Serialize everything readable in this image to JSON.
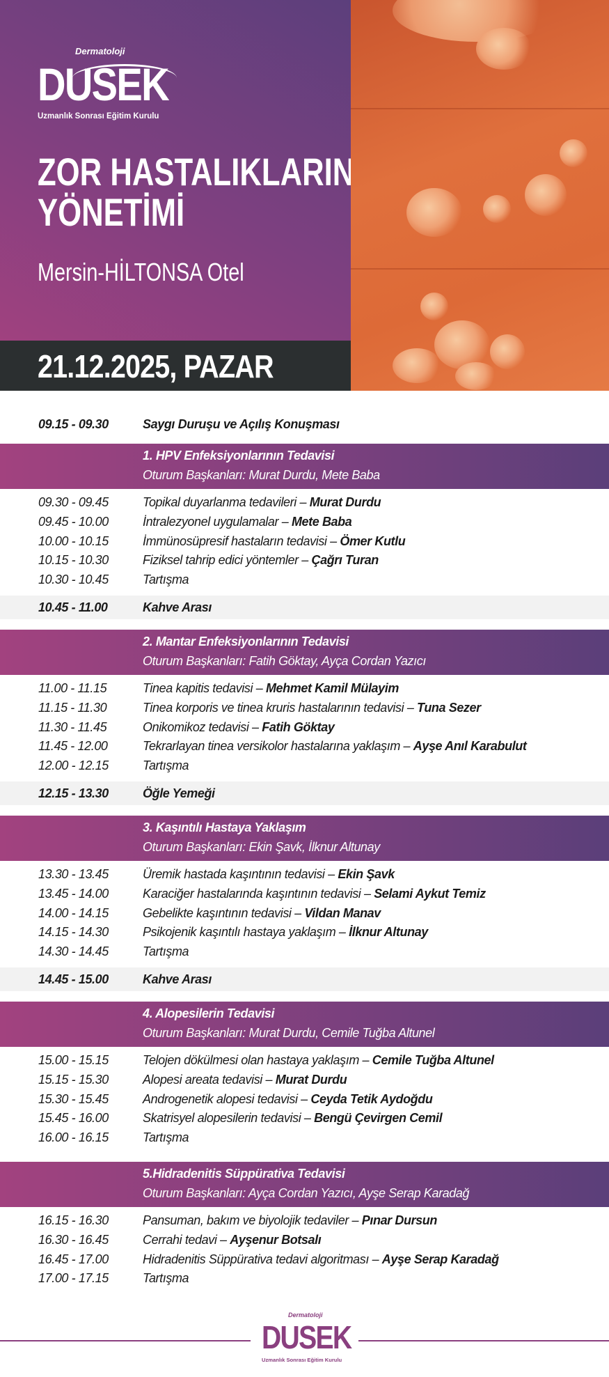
{
  "logo": {
    "top_text": "Dermatoloji",
    "main_text": "DUSEK",
    "sub_text": "Uzmanlık Sonrası Eğitim Kurulu"
  },
  "event": {
    "title_line1": "ZOR HASTALIKLARIN",
    "title_line2": "YÖNETİMİ",
    "venue": "Mersin-HİLTONSA Otel",
    "date": "21.12.2025, PAZAR"
  },
  "colors": {
    "purple_start": "#a2427f",
    "purple_end": "#5b3f7a",
    "date_bar": "#2b2f30",
    "break_band": "#f2f2f2",
    "photo_orange": "#dd6a37"
  },
  "schedule": [
    {
      "type": "plain",
      "time": "09.15 - 09.30",
      "title": "Saygı Duruşu ve Açılış Konuşması"
    },
    {
      "type": "session",
      "title": "1. HPV Enfeksiyonlarının Tedavisi",
      "chairs": "Oturum Başkanları: Murat Durdu, Mete Baba",
      "talks": [
        {
          "time": "09.30 - 09.45",
          "topic": "Topikal duyarlanma tedavileri – ",
          "speaker": "Murat Durdu"
        },
        {
          "time": "09.45 - 10.00",
          "topic": "İntralezyonel uygulamalar – ",
          "speaker": "Mete Baba"
        },
        {
          "time": "10.00 - 10.15",
          "topic": "İmmünosüpresif hastaların tedavisi – ",
          "speaker": "Ömer Kutlu"
        },
        {
          "time": "10.15 - 10.30",
          "topic": "Fiziksel tahrip edici yöntemler – ",
          "speaker": "Çağrı Turan"
        },
        {
          "time": "10.30 - 10.45",
          "topic": "Tartışma",
          "speaker": ""
        }
      ]
    },
    {
      "type": "break",
      "time": "10.45 - 11.00",
      "title": "Kahve Arası"
    },
    {
      "type": "session",
      "title": "2. Mantar Enfeksiyonlarının Tedavisi",
      "chairs": "Oturum Başkanları: Fatih Göktay, Ayça Cordan Yazıcı",
      "talks": [
        {
          "time": "11.00 - 11.15",
          "topic": "Tinea kapitis tedavisi – ",
          "speaker": "Mehmet Kamil Mülayim"
        },
        {
          "time": "11.15 - 11.30",
          "topic": "Tinea korporis ve tinea kruris hastalarının tedavisi – ",
          "speaker": "Tuna Sezer"
        },
        {
          "time": "11.30 - 11.45",
          "topic": "Onikomikoz tedavisi – ",
          "speaker": "Fatih Göktay"
        },
        {
          "time": "11.45 - 12.00",
          "topic": "Tekrarlayan tinea versikolor hastalarına yaklaşım – ",
          "speaker": "Ayşe Anıl Karabulut"
        },
        {
          "time": "12.00 - 12.15",
          "topic": "Tartışma",
          "speaker": ""
        }
      ]
    },
    {
      "type": "break",
      "time": "12.15 - 13.30",
      "title": "Öğle Yemeği"
    },
    {
      "type": "session",
      "title": "3. Kaşıntılı Hastaya Yaklaşım",
      "chairs": "Oturum Başkanları: Ekin Şavk, İlknur Altunay",
      "talks": [
        {
          "time": "13.30 - 13.45",
          "topic": "Üremik hastada kaşıntının tedavisi – ",
          "speaker": "Ekin Şavk"
        },
        {
          "time": "13.45 - 14.00",
          "topic": "Karaciğer hastalarında kaşıntının tedavisi – ",
          "speaker": "Selami Aykut Temiz"
        },
        {
          "time": "14.00 - 14.15",
          "topic": "Gebelikte kaşıntının tedavisi – ",
          "speaker": "Vildan Manav"
        },
        {
          "time": "14.15 - 14.30",
          "topic": "Psikojenik kaşıntılı hastaya yaklaşım – ",
          "speaker": "İlknur Altunay"
        },
        {
          "time": "14.30 - 14.45",
          "topic": "Tartışma",
          "speaker": ""
        }
      ]
    },
    {
      "type": "break",
      "time": "14.45 - 15.00",
      "title": "Kahve Arası"
    },
    {
      "type": "session",
      "title": "4. Alopesilerin Tedavisi",
      "chairs": "Oturum Başkanları: Murat Durdu, Cemile Tuğba Altunel",
      "talks": [
        {
          "time": "15.00 - 15.15",
          "topic": "Telojen dökülmesi olan hastaya yaklaşım – ",
          "speaker": "Cemile Tuğba Altunel"
        },
        {
          "time": "15.15 - 15.30",
          "topic": "Alopesi areata tedavisi – ",
          "speaker": "Murat Durdu"
        },
        {
          "time": "15.30 - 15.45",
          "topic": "Androgenetik alopesi tedavisi – ",
          "speaker": "Ceyda Tetik Aydoğdu"
        },
        {
          "time": "15.45 - 16.00",
          "topic": "Skatrisyel alopesilerin tedavisi – ",
          "speaker": "Bengü Çevirgen Cemil"
        },
        {
          "time": "16.00 - 16.15",
          "topic": "Tartışma",
          "speaker": ""
        }
      ]
    },
    {
      "type": "session",
      "title": "5.Hidradenitis Süppürativa Tedavisi",
      "chairs": "Oturum Başkanları: Ayça Cordan Yazıcı, Ayşe Serap Karadağ",
      "talks": [
        {
          "time": "16.15 - 16.30",
          "topic": "Pansuman, bakım ve biyolojik tedaviler – ",
          "speaker": "Pınar Dursun"
        },
        {
          "time": "16.30 - 16.45",
          "topic": "Cerrahi tedavi – ",
          "speaker": "Ayşenur Botsalı"
        },
        {
          "time": "16.45 - 17.00",
          "topic": "Hidradenitis Süppürativa tedavi algoritması – ",
          "speaker": "Ayşe Serap Karadağ"
        },
        {
          "time": "17.00 - 17.15",
          "topic": "Tartışma",
          "speaker": ""
        }
      ]
    }
  ]
}
